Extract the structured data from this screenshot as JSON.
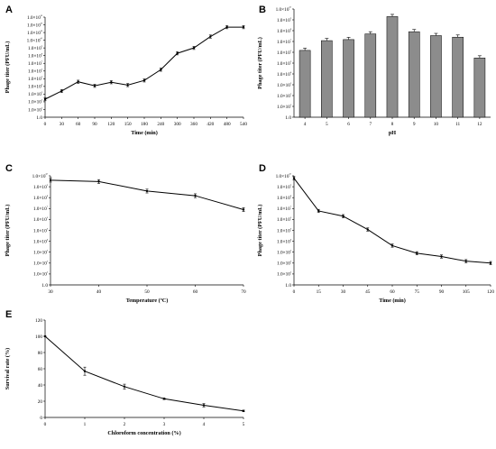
{
  "chart_data": [
    {
      "panel": "A",
      "type": "line",
      "xlabel": "Time (min)",
      "ylabel": "Phage titer (PFU/mL)",
      "y_scale": "log",
      "ylim": [
        1,
        10000000000000.0
      ],
      "yticks": [
        "1.0",
        "1.0×10¹",
        "1.0×10²",
        "1.0×10³",
        "1.0×10⁴",
        "1.0×10⁵",
        "1.0×10⁶",
        "1.0×10⁷",
        "1.0×10⁸",
        "1.0×10⁹",
        "1.0×10¹⁰",
        "1.0×10¹¹",
        "1.0×10¹²",
        "1.0×10¹³"
      ],
      "categories": [
        "0",
        "30",
        "60",
        "90",
        "120",
        "150",
        "180",
        "240",
        "300",
        "360",
        "420",
        "480",
        "540"
      ],
      "series": [
        {
          "values": [
            220,
            2500,
            40000,
            12000,
            35000,
            15000,
            60000,
            1500000,
            200000000,
            1000000000,
            30000000000,
            500000000000,
            500000000000
          ]
        }
      ]
    },
    {
      "panel": "B",
      "type": "bar",
      "xlabel": "pH",
      "ylabel": "Phage titer (PFU/mL)",
      "y_scale": "log",
      "ylim": [
        1,
        10000000000.0
      ],
      "yticks": [
        "1.0",
        "1.0×10¹",
        "1.0×10²",
        "1.0×10³",
        "1.0×10⁴",
        "1.0×10⁵",
        "1.0×10⁶",
        "1.0×10⁷",
        "1.0×10⁸",
        "1.0×10⁹",
        "1.0×10¹⁰"
      ],
      "categories": [
        "4",
        "5",
        "6",
        "7",
        "8",
        "9",
        "10",
        "11",
        "12"
      ],
      "series": [
        {
          "values": [
            1500000,
            12000000,
            15000000,
            50000000,
            2000000000,
            80000000,
            35000000,
            25000000,
            300000
          ]
        }
      ]
    },
    {
      "panel": "C",
      "type": "line",
      "xlabel": "Temperature (ºC)",
      "ylabel": "Phage titer (PFU/mL)",
      "y_scale": "log",
      "ylim": [
        1,
        10000000000.0
      ],
      "yticks": [
        "1.0",
        "1.0×10¹",
        "1.0×10²",
        "1.0×10³",
        "1.0×10⁴",
        "1.0×10⁵",
        "1.0×10⁶",
        "1.0×10⁷",
        "1.0×10⁸",
        "1.0×10⁹",
        "1.0×10¹⁰"
      ],
      "categories": [
        "30",
        "40",
        "50",
        "60",
        "70"
      ],
      "series": [
        {
          "values": [
            4000000000,
            3000000000,
            400000000,
            150000000,
            8000000
          ]
        }
      ]
    },
    {
      "panel": "D",
      "type": "line",
      "xlabel": "Time (min)",
      "ylabel": "Phage titer (PFU/mL)",
      "y_scale": "log",
      "ylim": [
        1,
        10000000000.0
      ],
      "yticks": [
        "1.0",
        "1.0×10¹",
        "1.0×10²",
        "1.0×10³",
        "1.0×10⁴",
        "1.0×10⁵",
        "1.0×10⁶",
        "1.0×10⁷",
        "1.0×10⁸",
        "1.0×10⁹",
        "1.0×10¹⁰"
      ],
      "categories": [
        "0",
        "15",
        "30",
        "45",
        "60",
        "75",
        "90",
        "105",
        "120"
      ],
      "series": [
        {
          "values": [
            6000000000,
            6000000,
            2000000,
            120000,
            4000,
            800,
            400,
            150,
            100
          ]
        }
      ]
    },
    {
      "panel": "E",
      "type": "line",
      "xlabel": "Chloroform concentration (%)",
      "ylabel": "Survival rate (%)",
      "ylim": [
        0,
        120
      ],
      "yticks": [
        "0",
        "20",
        "40",
        "60",
        "80",
        "100",
        "120"
      ],
      "categories": [
        "0",
        "1",
        "2",
        "3",
        "4",
        "5"
      ],
      "series": [
        {
          "values": [
            100,
            57,
            38,
            23,
            15,
            8
          ]
        }
      ]
    }
  ]
}
